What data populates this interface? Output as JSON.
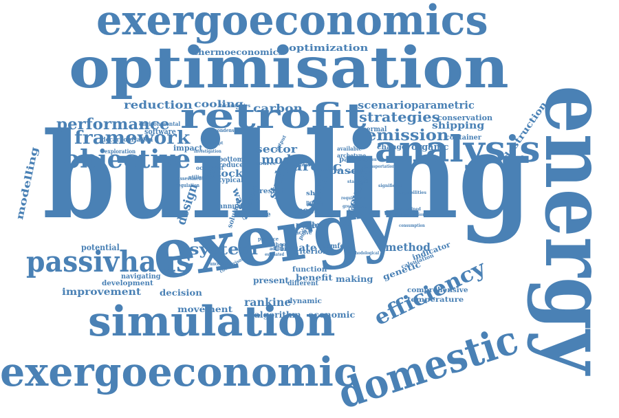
{
  "word_color": "#4a81b5",
  "words": [
    {
      "id": "building",
      "text": "building"
    },
    {
      "id": "energy",
      "text": "energy"
    },
    {
      "id": "optimisation",
      "text": "optimisation"
    },
    {
      "id": "exergy",
      "text": "exergy"
    },
    {
      "id": "exergoeconomics",
      "text": "exergoeconomics"
    },
    {
      "id": "exergoeconomic",
      "text": "exergoeconomic"
    },
    {
      "id": "simulation",
      "text": "simulation"
    },
    {
      "id": "domestic",
      "text": "domestic"
    },
    {
      "id": "analysis",
      "text": "analysis"
    },
    {
      "id": "retrofit",
      "text": "retrofit"
    },
    {
      "id": "passivhaus",
      "text": "passivhaus"
    },
    {
      "id": "objective",
      "text": "objective"
    },
    {
      "id": "efficiency",
      "text": "efficiency"
    },
    {
      "id": "framework",
      "text": "framework"
    },
    {
      "id": "performance",
      "text": "performance"
    },
    {
      "id": "emission",
      "text": "emission"
    },
    {
      "id": "system",
      "text": "system"
    },
    {
      "id": "strategies",
      "text": "strategies"
    },
    {
      "id": "reduction",
      "text": "reduction"
    },
    {
      "id": "carbon",
      "text": "carbon"
    },
    {
      "id": "cooling",
      "text": "cooling"
    },
    {
      "id": "improvement",
      "text": "improvement"
    },
    {
      "id": "scenario",
      "text": "scenario"
    },
    {
      "id": "parametric",
      "text": "parametric"
    },
    {
      "id": "modelling",
      "text": "modelling"
    },
    {
      "id": "destruction",
      "text": "destruction"
    },
    {
      "id": "optimization",
      "text": "optimization"
    },
    {
      "id": "thermoeconomics",
      "text": "thermoeconomics"
    },
    {
      "id": "arctic",
      "text": "arctic"
    },
    {
      "id": "model",
      "text": "model"
    },
    {
      "id": "sector",
      "text": "sector"
    },
    {
      "id": "design",
      "text": "design"
    },
    {
      "id": "study",
      "text": "study"
    },
    {
      "id": "heat",
      "text": "heat"
    },
    {
      "id": "recovery",
      "text": "recovery"
    },
    {
      "id": "rankine",
      "text": "rankine"
    },
    {
      "id": "method",
      "text": "method"
    },
    {
      "id": "stock",
      "text": "stock"
    },
    {
      "id": "shipping",
      "text": "shipping"
    },
    {
      "id": "based",
      "text": "based"
    },
    {
      "id": "climate",
      "text": "climate"
    },
    {
      "id": "genetic",
      "text": "genetic"
    },
    {
      "id": "movement",
      "text": "movement"
    },
    {
      "id": "decision",
      "text": "decision"
    },
    {
      "id": "economic",
      "text": "economic"
    },
    {
      "id": "algorithm",
      "text": "algorithm"
    },
    {
      "id": "making",
      "text": "making"
    },
    {
      "id": "benefit",
      "text": "benefit"
    },
    {
      "id": "function",
      "text": "function"
    },
    {
      "id": "comprehensive",
      "text": "comprehensive"
    },
    {
      "id": "temperature",
      "text": "temperature"
    },
    {
      "id": "indicator",
      "text": "indicator"
    },
    {
      "id": "potential",
      "text": "potential"
    },
    {
      "id": "navigating",
      "text": "navigating"
    },
    {
      "id": "development",
      "text": "development"
    },
    {
      "id": "present",
      "text": "present"
    },
    {
      "id": "conservation",
      "text": "conservation"
    },
    {
      "id": "container",
      "text": "container"
    },
    {
      "id": "organic",
      "text": "organic"
    },
    {
      "id": "thermal",
      "text": "thermal"
    },
    {
      "id": "change",
      "text": "change"
    },
    {
      "id": "passive",
      "text": "passive"
    },
    {
      "id": "comfort",
      "text": "comfort"
    },
    {
      "id": "cost",
      "text": "cost"
    },
    {
      "id": "cycle",
      "text": "cycle"
    },
    {
      "id": "paper",
      "text": "paper"
    },
    {
      "id": "dynamic",
      "text": "dynamic"
    },
    {
      "id": "criterion",
      "text": "criterion"
    },
    {
      "id": "different",
      "text": "different"
    },
    {
      "id": "waste",
      "text": "waste"
    },
    {
      "id": "impact",
      "text": "impact"
    },
    {
      "id": "reduce",
      "text": "reduce"
    },
    {
      "id": "bottom",
      "text": "bottom"
    },
    {
      "id": "annual",
      "text": "annual"
    },
    {
      "id": "typical",
      "text": "typical"
    },
    {
      "id": "result",
      "text": "result"
    },
    {
      "id": "measure",
      "text": "measure"
    },
    {
      "id": "solution",
      "text": "solution"
    },
    {
      "id": "case",
      "text": "case"
    },
    {
      "id": "approach",
      "text": "approach"
    },
    {
      "id": "software",
      "text": "software"
    },
    {
      "id": "decarbonisation",
      "text": "decarbonisation"
    },
    {
      "id": "exploration",
      "text": "exploration"
    },
    {
      "id": "occupant",
      "text": "occupant"
    },
    {
      "id": "environmental",
      "text": "environmental"
    },
    {
      "id": "technologies",
      "text": "technologies"
    },
    {
      "id": "condenser",
      "text": "condenser"
    },
    {
      "id": "available",
      "text": "available"
    },
    {
      "id": "archetype",
      "text": "archetype"
    },
    {
      "id": "calculation",
      "text": "calculation"
    },
    {
      "id": "active",
      "text": "active"
    },
    {
      "id": "ship",
      "text": "ship"
    },
    {
      "id": "policy",
      "text": "policy"
    },
    {
      "id": "source",
      "text": "source"
    },
    {
      "id": "school",
      "text": "school"
    },
    {
      "id": "practice",
      "text": "practice"
    },
    {
      "id": "comparison",
      "text": "comparison"
    },
    {
      "id": "assessment",
      "text": "assessment"
    },
    {
      "id": "regulation",
      "text": "regulation"
    },
    {
      "id": "utilisation",
      "text": "utilisation"
    },
    {
      "id": "uncertainty",
      "text": "uncertainty"
    },
    {
      "id": "addition",
      "text": "addition"
    },
    {
      "id": "estimated",
      "text": "estimated"
    },
    {
      "id": "capabilities",
      "text": "capabilities"
    },
    {
      "id": "consumption",
      "text": "consumption"
    },
    {
      "id": "significant",
      "text": "significant"
    },
    {
      "id": "configuration",
      "text": "configuration"
    },
    {
      "id": "considered",
      "text": "considered"
    },
    {
      "id": "standard",
      "text": "standard"
    },
    {
      "id": "methodological",
      "text": "methodological"
    },
    {
      "id": "execution",
      "text": "execution"
    },
    {
      "id": "output",
      "text": "output"
    },
    {
      "id": "constrained",
      "text": "constrained"
    },
    {
      "id": "solar",
      "text": "solar"
    },
    {
      "id": "power",
      "text": "power"
    },
    {
      "id": "scale",
      "text": "scale"
    },
    {
      "id": "transportation",
      "text": "transportation"
    },
    {
      "id": "requirement",
      "text": "requirement"
    },
    {
      "id": "greenhouse",
      "text": "greenhouse"
    },
    {
      "id": "concept",
      "text": "concept"
    },
    {
      "id": "investigation",
      "text": "investigation"
    }
  ]
}
